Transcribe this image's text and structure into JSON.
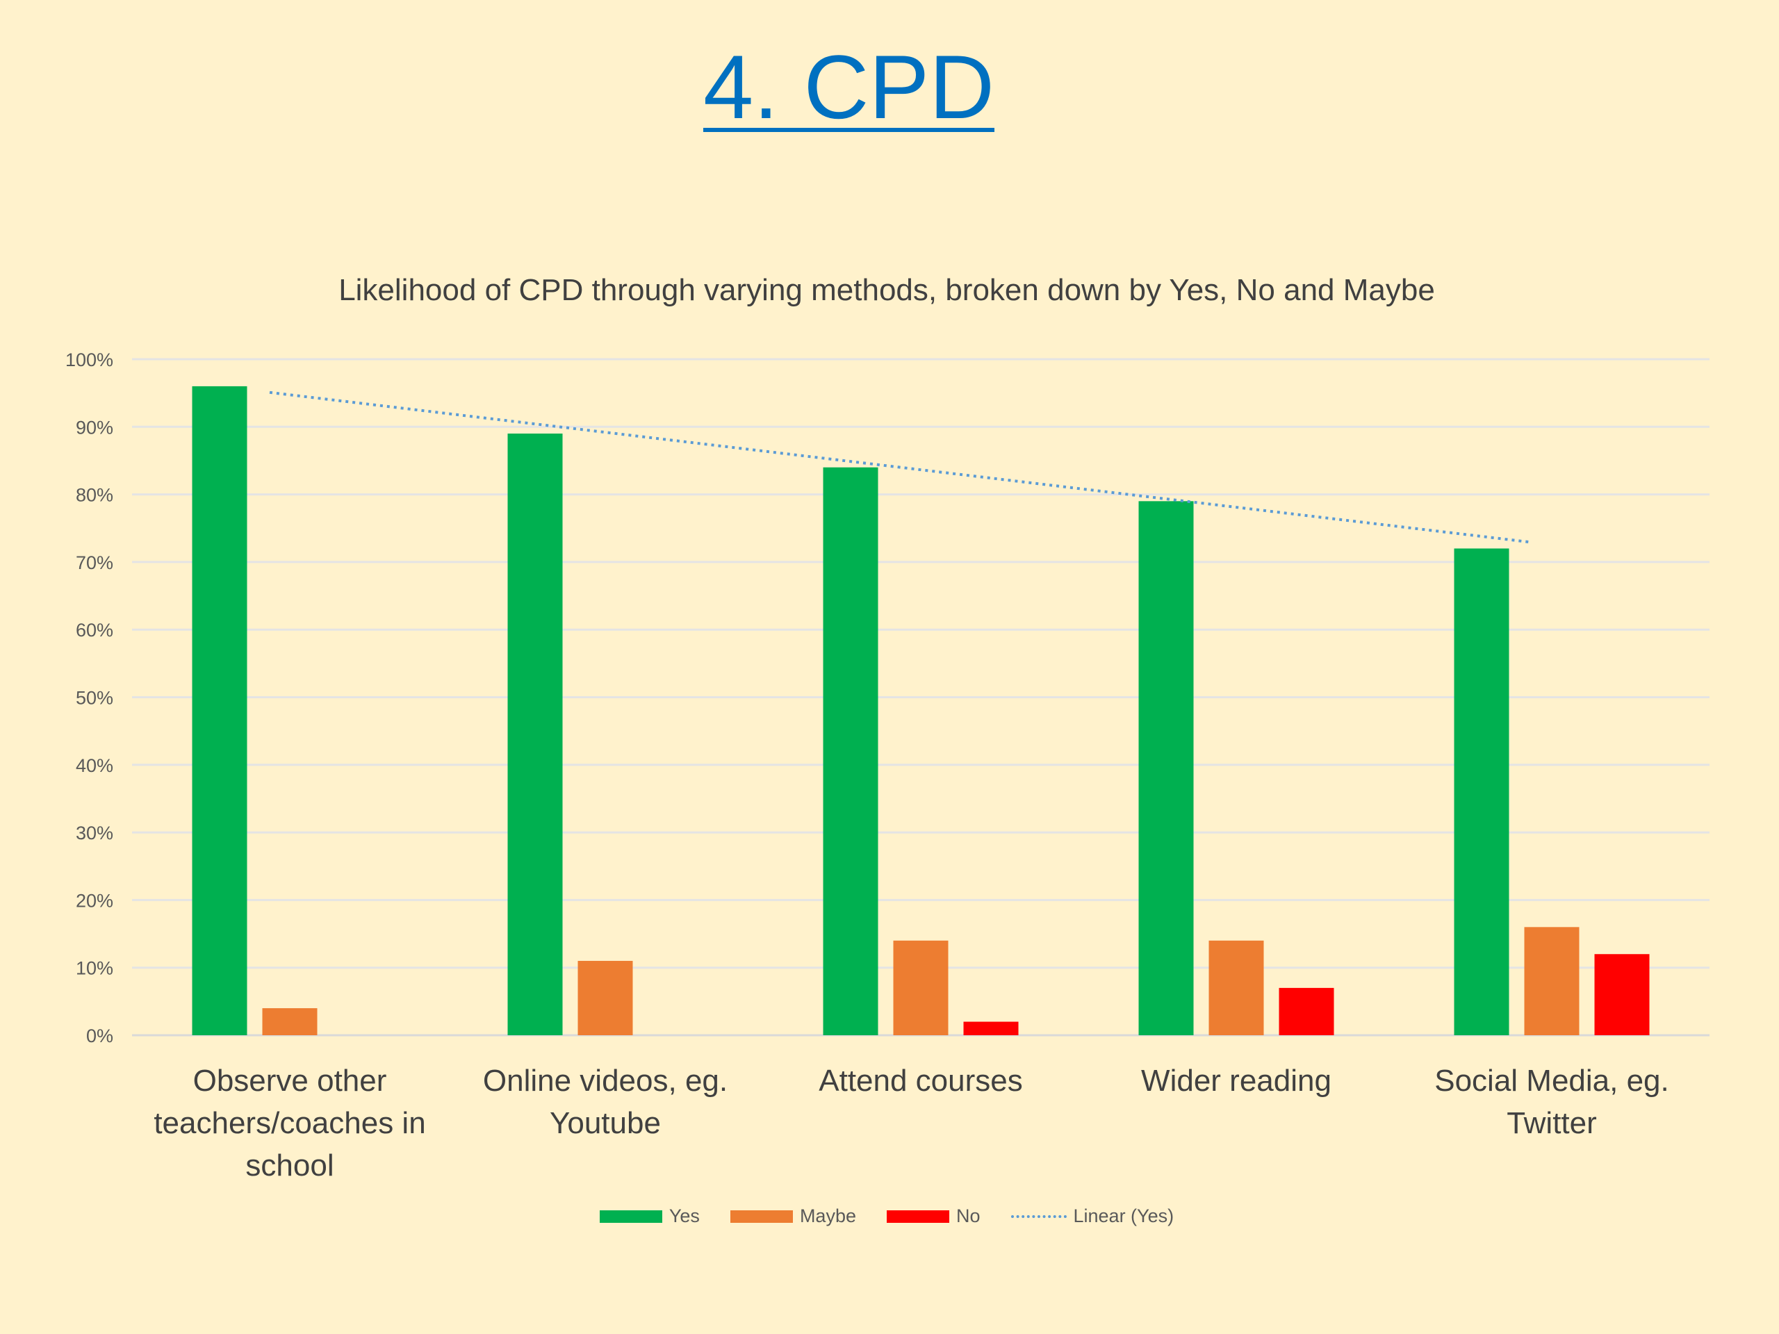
{
  "slide": {
    "title": "4. CPD"
  },
  "chart_data": {
    "type": "bar",
    "title": "Likelihood of CPD through varying methods, broken down by Yes, No and Maybe",
    "categories": [
      "Observe other teachers/coaches in school",
      "Online videos, eg. Youtube",
      "Attend courses",
      "Wider reading",
      "Social Media, eg. Twitter"
    ],
    "category_lines": [
      [
        "Observe other",
        "teachers/coaches in",
        "school"
      ],
      [
        "Online videos, eg.",
        "Youtube"
      ],
      [
        "Attend courses"
      ],
      [
        "Wider reading"
      ],
      [
        "Social Media, eg.",
        "Twitter"
      ]
    ],
    "series": [
      {
        "name": "Yes",
        "color": "#00B050",
        "values": [
          96,
          89,
          84,
          79,
          72
        ]
      },
      {
        "name": "Maybe",
        "color": "#ED7D31",
        "values": [
          4,
          11,
          14,
          14,
          16
        ]
      },
      {
        "name": "No",
        "color": "#FF0000",
        "values": [
          0,
          0,
          2,
          7,
          12
        ]
      }
    ],
    "trendline": {
      "name": "Linear (Yes)",
      "of_series": "Yes",
      "type": "linear",
      "color": "#5B9BD5",
      "style": "dotted"
    },
    "ylim": [
      0,
      100
    ],
    "yticks": [
      "0%",
      "10%",
      "20%",
      "30%",
      "40%",
      "50%",
      "60%",
      "70%",
      "80%",
      "90%",
      "100%"
    ],
    "grid": true,
    "legend_position": "bottom"
  }
}
